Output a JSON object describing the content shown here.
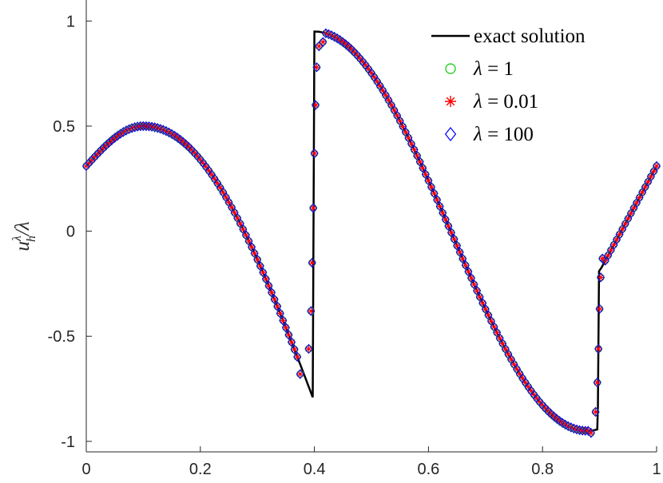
{
  "chart_data": {
    "type": "line",
    "title": "",
    "xlabel": "",
    "ylabel": "u_h^λ/λ",
    "ylabel_parts": {
      "base": "u",
      "sub": "h",
      "sup": "λ",
      "rest": "/λ"
    },
    "xlim": [
      0,
      1
    ],
    "ylim": [
      -1.05,
      1.1
    ],
    "x_ticks": [
      0,
      0.2,
      0.4,
      0.6,
      0.8,
      1
    ],
    "x_tick_labels": [
      "0",
      "0.2",
      "0.4",
      "0.6",
      "0.8",
      "1"
    ],
    "y_ticks": [
      -1,
      -0.5,
      0,
      0.5,
      1
    ],
    "y_tick_labels": [
      "-1",
      "-0.5",
      "0",
      "0.5",
      "1"
    ],
    "grid": false,
    "legend_position": "top-right",
    "series": [
      {
        "name": "exact solution",
        "legend_text": "exact solution",
        "style": "line",
        "color": "#000000",
        "x": [
          0,
          0.1,
          0.2,
          0.3,
          0.35,
          0.397,
          0.4,
          0.5,
          0.6,
          0.7,
          0.8,
          0.85,
          0.897,
          0.9,
          0.95,
          1.0
        ],
        "y": [
          0.31,
          0.5,
          0.31,
          -0.19,
          -0.48,
          -0.79,
          0.95,
          0.59,
          -0.0,
          -0.59,
          -0.95,
          -1.0,
          -0.84,
          -0.19,
          0.05,
          0.31
        ]
      },
      {
        "name": "λ = 1",
        "legend_symbol": "λ",
        "legend_value": "1",
        "style": "markers",
        "marker": "circle",
        "color": "#00c800"
      },
      {
        "name": "λ = 0.01",
        "legend_symbol": "λ",
        "legend_value": "0.01",
        "style": "markers",
        "marker": "asterisk",
        "color": "#ff0000"
      },
      {
        "name": "λ = 100",
        "legend_symbol": "λ",
        "legend_value": "100",
        "style": "markers",
        "marker": "diamond",
        "color": "#0000ff"
      }
    ],
    "marker_samples": {
      "smooth_x": [
        0,
        0.01,
        0.02,
        0.03,
        0.04,
        0.05,
        0.06,
        0.07,
        0.08,
        0.09,
        0.1,
        0.11,
        0.12,
        0.13,
        0.14,
        0.15,
        0.16,
        0.17,
        0.18,
        0.19,
        0.2,
        0.21,
        0.22,
        0.23,
        0.24,
        0.25,
        0.26,
        0.27,
        0.28,
        0.29,
        0.3,
        0.31,
        0.32,
        0.33,
        0.34,
        0.35,
        0.36,
        0.37,
        0.42,
        0.43,
        0.44,
        0.45,
        0.46,
        0.47,
        0.48,
        0.49,
        0.5,
        0.51,
        0.52,
        0.53,
        0.54,
        0.55,
        0.56,
        0.57,
        0.58,
        0.59,
        0.6,
        0.61,
        0.62,
        0.63,
        0.64,
        0.65,
        0.66,
        0.67,
        0.68,
        0.69,
        0.7,
        0.71,
        0.72,
        0.73,
        0.74,
        0.75,
        0.76,
        0.77,
        0.78,
        0.79,
        0.8,
        0.81,
        0.82,
        0.83,
        0.84,
        0.85,
        0.86,
        0.87,
        0.88,
        0.91,
        0.92,
        0.93,
        0.94,
        0.95,
        0.96,
        0.97,
        0.98,
        0.99,
        1.0
      ],
      "jump1": [
        [
          0.375,
          -0.68
        ],
        [
          0.39,
          -0.56
        ],
        [
          0.394,
          -0.38
        ],
        [
          0.396,
          -0.15
        ],
        [
          0.398,
          0.11
        ],
        [
          0.4,
          0.37
        ],
        [
          0.402,
          0.6
        ],
        [
          0.404,
          0.78
        ],
        [
          0.408,
          0.88
        ],
        [
          0.415,
          0.9
        ]
      ],
      "jump2": [
        [
          0.885,
          -0.96
        ],
        [
          0.893,
          -0.86
        ],
        [
          0.896,
          -0.72
        ],
        [
          0.898,
          -0.56
        ],
        [
          0.9,
          -0.37
        ],
        [
          0.902,
          -0.22
        ],
        [
          0.905,
          -0.13
        ]
      ]
    }
  }
}
